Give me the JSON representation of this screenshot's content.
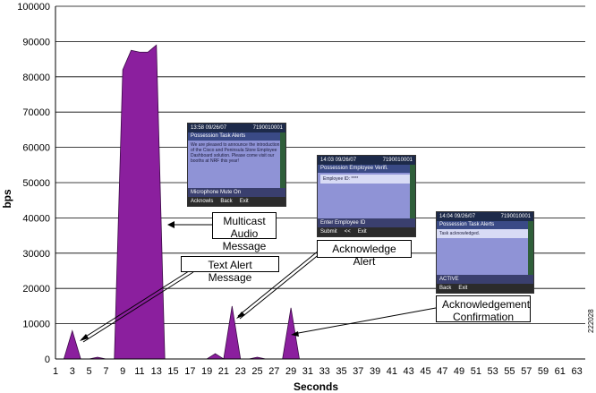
{
  "chart_data": {
    "type": "area",
    "xlabel": "Seconds",
    "ylabel": "bps",
    "ylim": [
      0,
      100000
    ],
    "xlim": [
      1,
      64
    ],
    "yticks": [
      0,
      10000,
      20000,
      30000,
      40000,
      50000,
      60000,
      70000,
      80000,
      90000,
      100000
    ],
    "xticks": [
      1,
      3,
      5,
      7,
      9,
      11,
      13,
      15,
      17,
      19,
      21,
      23,
      25,
      27,
      29,
      31,
      33,
      35,
      37,
      39,
      41,
      43,
      45,
      47,
      49,
      51,
      53,
      55,
      57,
      59,
      61,
      63
    ],
    "color": "#8b1f9e",
    "x": [
      1,
      2,
      3,
      4,
      5,
      6,
      7,
      8,
      9,
      10,
      11,
      12,
      13,
      14,
      15,
      16,
      17,
      18,
      19,
      20,
      21,
      22,
      23,
      24,
      25,
      26,
      27,
      28,
      29,
      30,
      31,
      32,
      33,
      34,
      35,
      36,
      37,
      38,
      39,
      40,
      41,
      42,
      43,
      44,
      45,
      46,
      47,
      48,
      49,
      50,
      51,
      52,
      53,
      54,
      55,
      56,
      57,
      58,
      59,
      60,
      61,
      62,
      63,
      64
    ],
    "y": [
      0,
      0,
      8000,
      0,
      0,
      500,
      0,
      0,
      82000,
      87500,
      87000,
      87000,
      89000,
      0,
      0,
      0,
      0,
      0,
      0,
      1500,
      0,
      15000,
      0,
      0,
      500,
      0,
      0,
      0,
      14500,
      0,
      0,
      0,
      0,
      0,
      0,
      0,
      0,
      0,
      0,
      0,
      0,
      0,
      0,
      0,
      0,
      0,
      0,
      0,
      0,
      0,
      0,
      0,
      0,
      0,
      0,
      0,
      0,
      0,
      0,
      0,
      0,
      0,
      0,
      0
    ],
    "annotations": [
      {
        "id": "multicast",
        "lines": [
          "Multicast",
          "Audio Message"
        ]
      },
      {
        "id": "text-alert",
        "lines": [
          "Text Alert Message"
        ]
      },
      {
        "id": "ack-alert",
        "lines": [
          "Acknowledge Alert"
        ]
      },
      {
        "id": "ack-confirm",
        "lines": [
          "Acknowledgement",
          "Confirmation"
        ]
      }
    ]
  },
  "phone_screens": {
    "screen1": {
      "time": "13:58 09/26/07",
      "number": "7190010001",
      "title": "Possession Task Alerts",
      "body": "We are pleased to announce the introduction of the Cisco and Peninsula Store Employee Dashboard solution. Please come visit our booths at NRF this year!",
      "status": "Microphone Mute On",
      "softkeys": [
        "Acknowls",
        "Back",
        "Exit"
      ]
    },
    "screen2": {
      "time": "14:03 09/26/07",
      "number": "7190010001",
      "title": "Possession Employee Verifi.",
      "field": "Employee ID: ****",
      "status": "Enter Employee ID",
      "softkeys": [
        "Submit",
        "<<",
        "Exit"
      ]
    },
    "screen3": {
      "time": "14:04 09/26/07",
      "number": "7190010001",
      "title": "Possession Task Alerts",
      "body": "Task acknowledged.",
      "status": "ACTIVE",
      "softkeys": [
        "Back",
        "Exit"
      ]
    }
  },
  "figure_id": "222028"
}
